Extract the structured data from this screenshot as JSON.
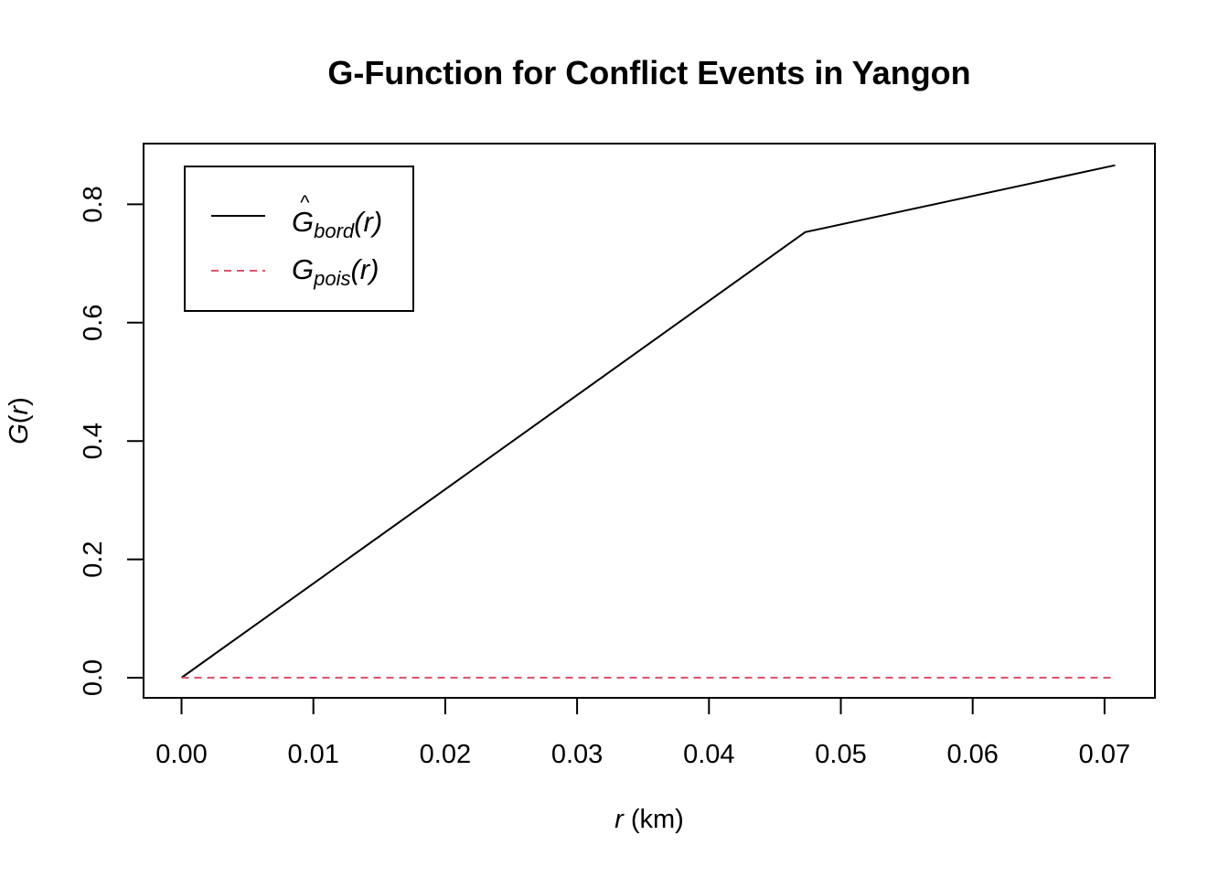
{
  "chart_data": {
    "type": "line",
    "title": "G-Function for Conflict Events in Yangon",
    "xlabel": {
      "var": "r",
      "unit": "(km)"
    },
    "ylabel": {
      "func": "G",
      "open": "(",
      "var": "r",
      "close": ")"
    },
    "xlim": [
      0,
      0.071
    ],
    "ylim": [
      0,
      0.87
    ],
    "xticks": [
      0,
      0.01,
      0.02,
      0.03,
      0.04,
      0.05,
      0.06,
      0.07
    ],
    "xtick_labels": [
      "0.00",
      "0.01",
      "0.02",
      "0.03",
      "0.04",
      "0.05",
      "0.06",
      "0.07"
    ],
    "yticks": [
      0,
      0.2,
      0.4,
      0.6,
      0.8
    ],
    "ytick_labels": [
      "0.0",
      "0.2",
      "0.4",
      "0.6",
      "0.8"
    ],
    "grid": false,
    "legend_position": "top-left",
    "series": [
      {
        "legend": {
          "hat": "^",
          "base": "G",
          "sub": "bord",
          "arg": "(r)"
        },
        "color": "#000000",
        "dash": "solid",
        "x": [
          0,
          0.0473,
          0.0708
        ],
        "y": [
          0,
          0.753,
          0.866
        ]
      },
      {
        "legend": {
          "hat": "",
          "base": "G",
          "sub": "pois",
          "arg": "(r)"
        },
        "color": "#DF536B",
        "dash": "dashed",
        "x": [
          0,
          0.0708
        ],
        "y": [
          0,
          0
        ]
      }
    ]
  }
}
